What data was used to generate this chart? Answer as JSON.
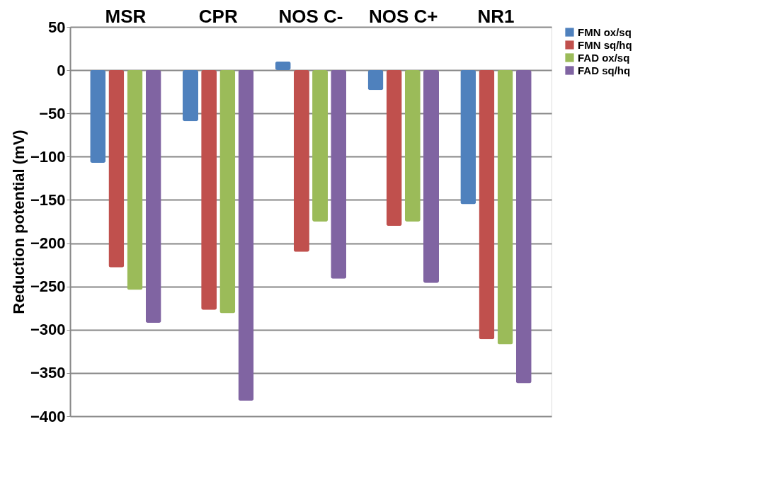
{
  "chart_data": {
    "type": "bar",
    "ylabel": "Reduction potential (mV)",
    "categories": [
      "MSR",
      "CPR",
      "NOS C-",
      "NOS C+",
      "NR1"
    ],
    "series": [
      {
        "name": "FMN ox/sq",
        "color": "#4f81bd",
        "values": [
          -107,
          -59,
          10,
          -23,
          -155
        ]
      },
      {
        "name": "FMN sq/hq",
        "color": "#c0504d",
        "values": [
          -228,
          -277,
          -210,
          -180,
          -311
        ]
      },
      {
        "name": "FAD ox/sq",
        "color": "#9bbb59",
        "values": [
          -254,
          -281,
          -175,
          -175,
          -317
        ]
      },
      {
        "name": "FAD sq/hq",
        "color": "#8064a2",
        "values": [
          -292,
          -382,
          -241,
          -246,
          -362
        ]
      }
    ],
    "ylim": [
      -400,
      50
    ],
    "yticks": [
      -400,
      -350,
      -300,
      -250,
      -200,
      -150,
      -100,
      -50,
      0,
      50
    ],
    "grid": "y",
    "legend": "right"
  }
}
